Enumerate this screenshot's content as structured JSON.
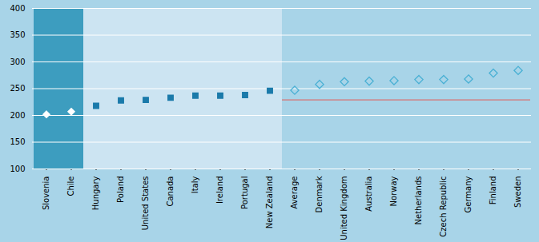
{
  "chart_data": {
    "type": "scatter",
    "categories": [
      "Slovenia",
      "Chile",
      "Hungary",
      "Poland",
      "United States",
      "Canada",
      "Italy",
      "Ireland",
      "Portugal",
      "New Zealand",
      "Average",
      "Denmark",
      "United Kingdom",
      "Australia",
      "Norway",
      "Netherlands",
      "Czech Republic",
      "Germany",
      "Finland",
      "Sweden"
    ],
    "series": [
      {
        "color": "#ffffff",
        "marker": "diamond",
        "values": [
          202,
          207,
          null,
          null,
          null,
          null,
          null,
          null,
          null,
          null,
          null,
          null,
          null,
          null,
          null,
          null,
          null,
          null,
          null,
          null
        ]
      },
      {
        "color": "#1a7aaa",
        "marker": "square",
        "values": [
          null,
          null,
          218,
          228,
          229,
          233,
          237,
          237,
          238,
          246,
          null,
          null,
          null,
          null,
          null,
          null,
          null,
          null,
          null,
          null
        ]
      },
      {
        "color": "#4ab0d4",
        "marker": "diamond_open",
        "values": [
          null,
          null,
          null,
          null,
          null,
          null,
          null,
          null,
          null,
          null,
          247,
          258,
          263,
          264,
          265,
          267,
          267,
          268,
          279,
          284
        ]
      },
      {
        "type": "line",
        "color": "#d97070",
        "line_style": "solid",
        "values": [
          null,
          null,
          null,
          null,
          null,
          null,
          null,
          null,
          null,
          null,
          229,
          229,
          229,
          229,
          229,
          229,
          229,
          229,
          229,
          229
        ]
      }
    ],
    "ylim": [
      100,
      400
    ],
    "yticks": [
      100,
      150,
      200,
      250,
      300,
      350,
      400
    ],
    "grid": true
  }
}
